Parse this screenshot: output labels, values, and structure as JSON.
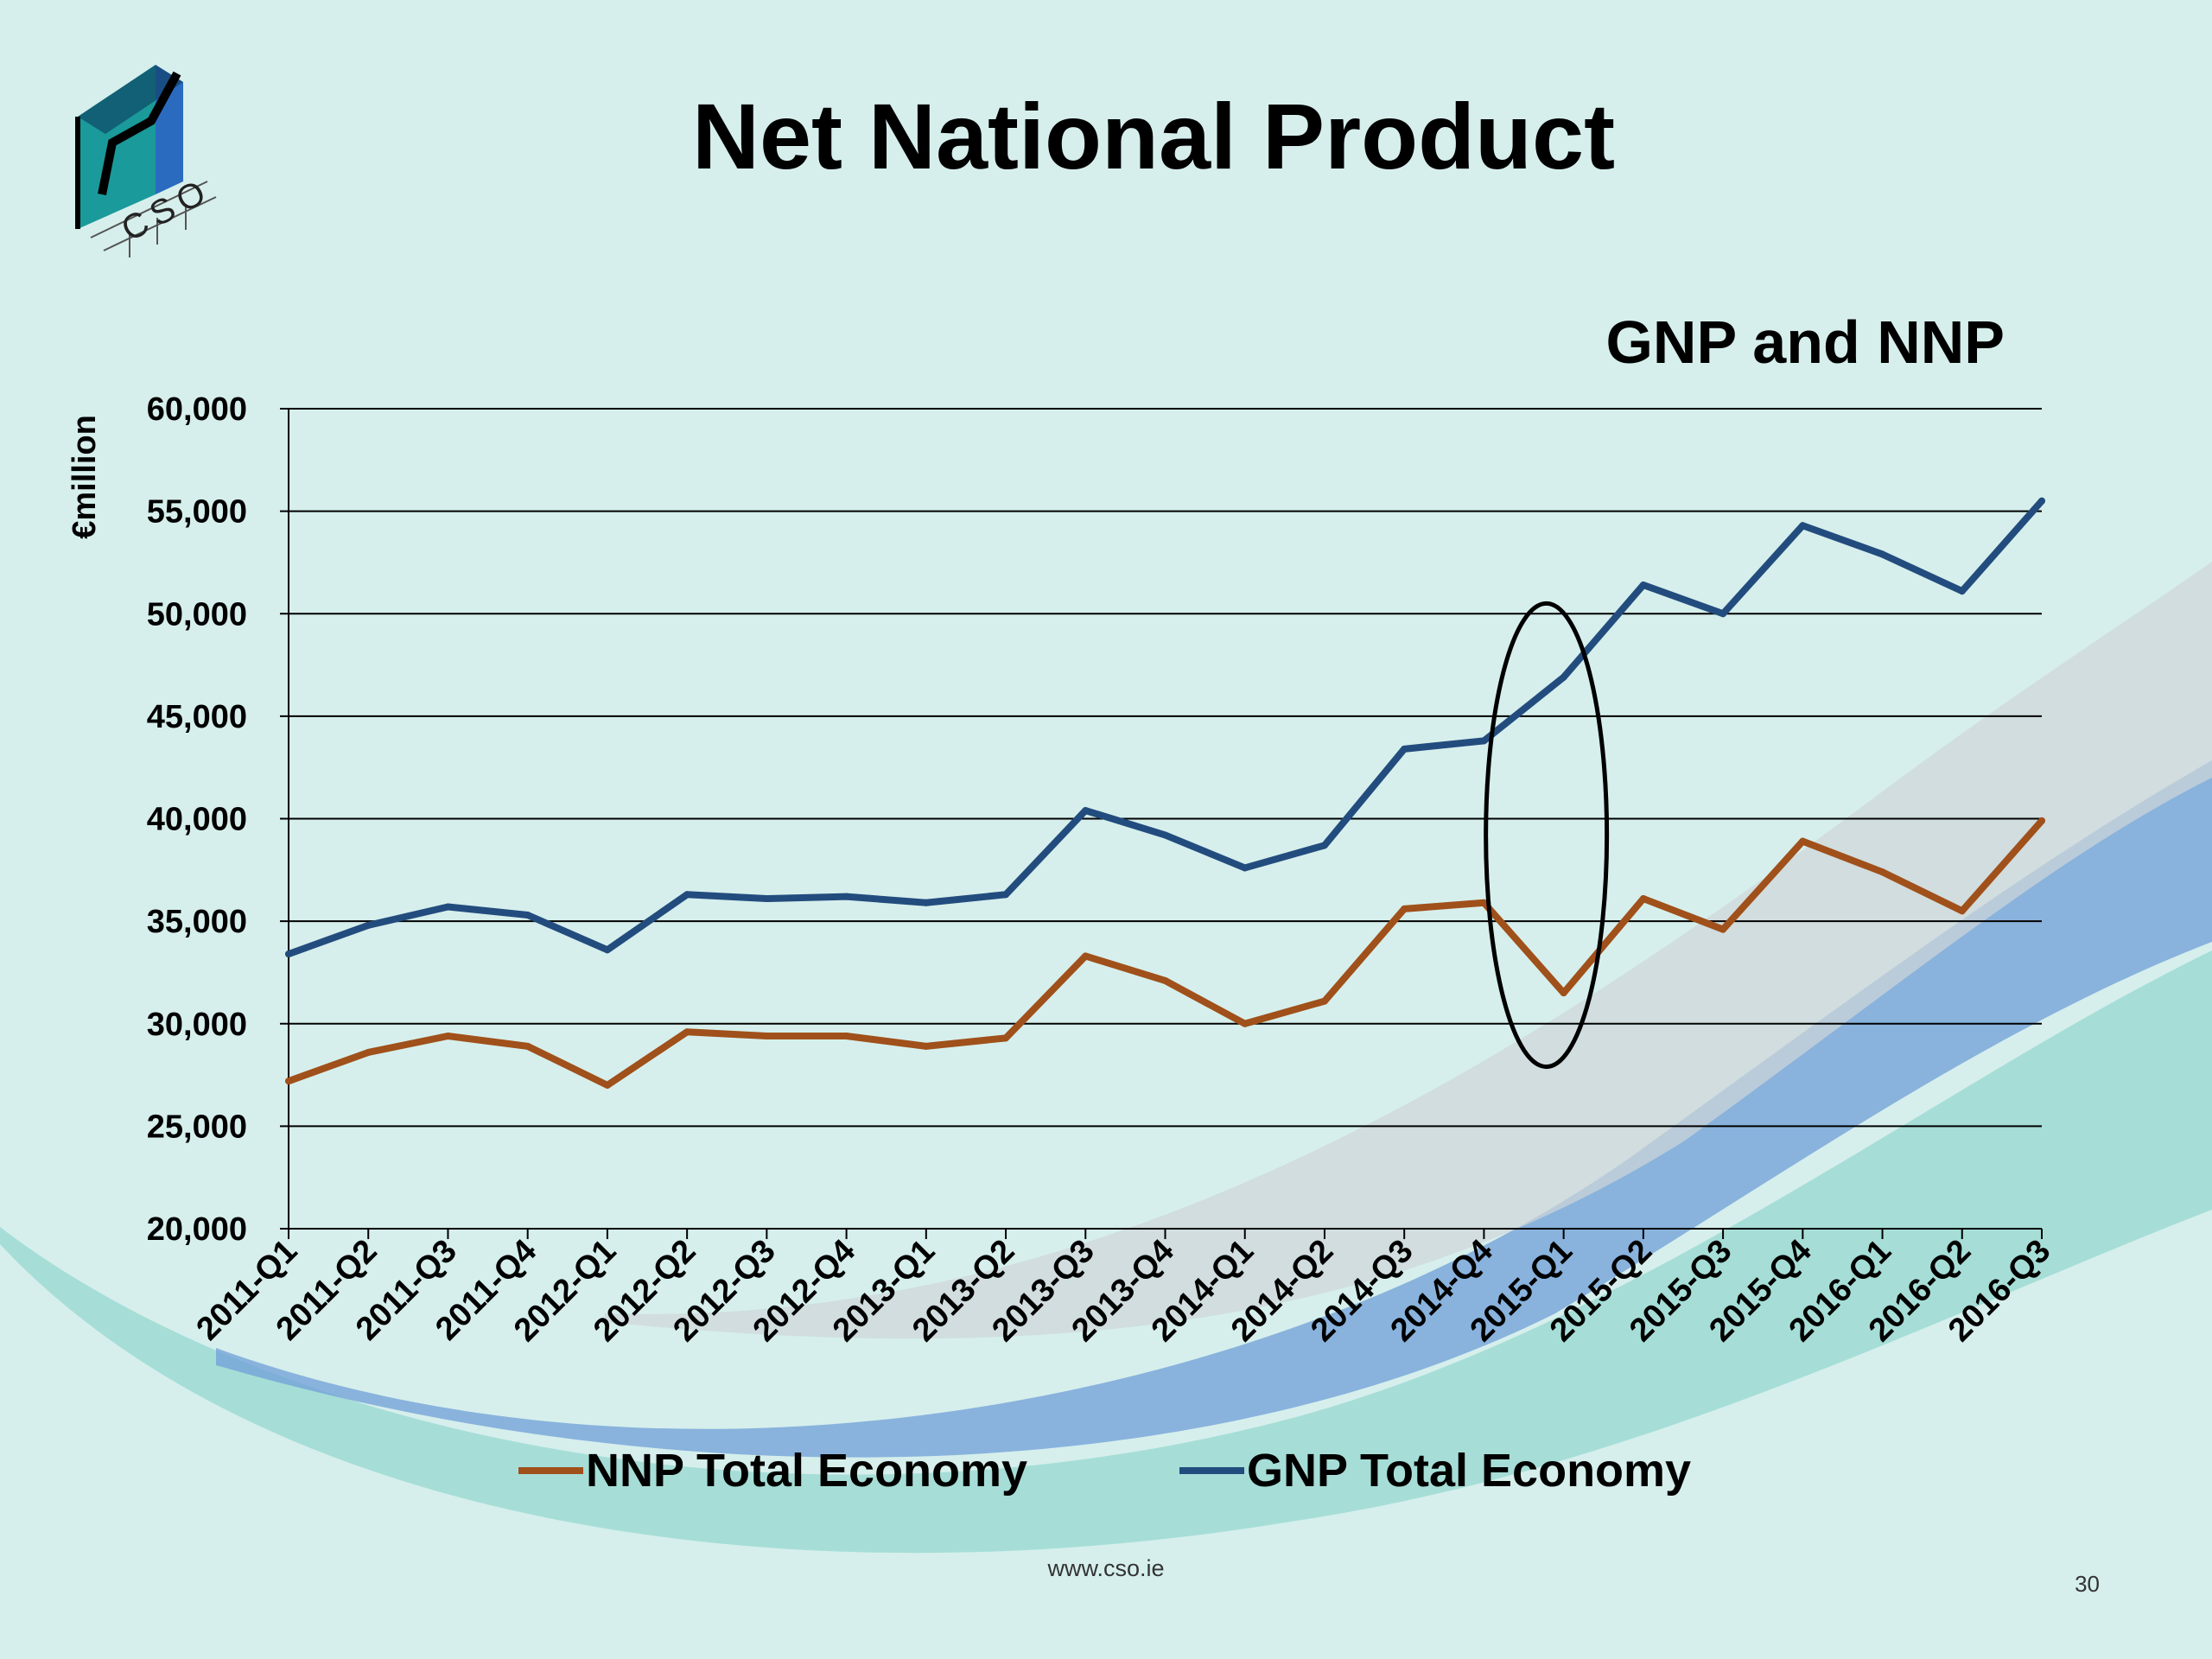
{
  "slide": {
    "title": "Net National Product",
    "footer_url": "www.cso.ie",
    "page_number": "30",
    "logo_text": "CSO",
    "colors": {
      "background": "#d6efec",
      "nnp_line": "#a0501a",
      "gnp_line": "#234c7e"
    }
  },
  "chart_data": {
    "type": "line",
    "title": "GNP and NNP",
    "xlabel": "",
    "ylabel": "€million",
    "ylim": [
      20000,
      60000
    ],
    "yticks": [
      20000,
      25000,
      30000,
      35000,
      40000,
      45000,
      50000,
      55000,
      60000
    ],
    "ytick_labels": [
      "20,000",
      "25,000",
      "30,000",
      "35,000",
      "40,000",
      "45,000",
      "50,000",
      "55,000",
      "60,000"
    ],
    "grid": true,
    "legend_position": "bottom",
    "categories": [
      "2011-Q1",
      "2011-Q2",
      "2011-Q3",
      "2011-Q4",
      "2012-Q1",
      "2012-Q2",
      "2012-Q3",
      "2012-Q4",
      "2013-Q1",
      "2013-Q2",
      "2013-Q3",
      "2013-Q4",
      "2014-Q1",
      "2014-Q2",
      "2014-Q3",
      "2014-Q4",
      "2015-Q1",
      "2015-Q2",
      "2015-Q3",
      "2015-Q4",
      "2016-Q1",
      "2016-Q2",
      "2016-Q3"
    ],
    "series": [
      {
        "name": "NNP Total Economy",
        "color": "#a0501a",
        "values": [
          27200,
          28600,
          29400,
          28900,
          27000,
          29600,
          29400,
          29400,
          28900,
          29300,
          33300,
          32100,
          30000,
          31100,
          35600,
          35900,
          31500,
          36100,
          34600,
          38900,
          37400,
          35500,
          39900
        ]
      },
      {
        "name": "GNP Total Economy",
        "color": "#234c7e",
        "values": [
          33400,
          34800,
          35700,
          35300,
          33600,
          36300,
          36100,
          36200,
          35900,
          36300,
          40400,
          39200,
          37600,
          38700,
          43400,
          43800,
          46900,
          51400,
          50000,
          54300,
          52900,
          51100,
          55500
        ]
      }
    ],
    "annotation": {
      "shape": "ellipse",
      "category": "2015-Q1",
      "y_range": [
        27900,
        50500
      ]
    }
  }
}
